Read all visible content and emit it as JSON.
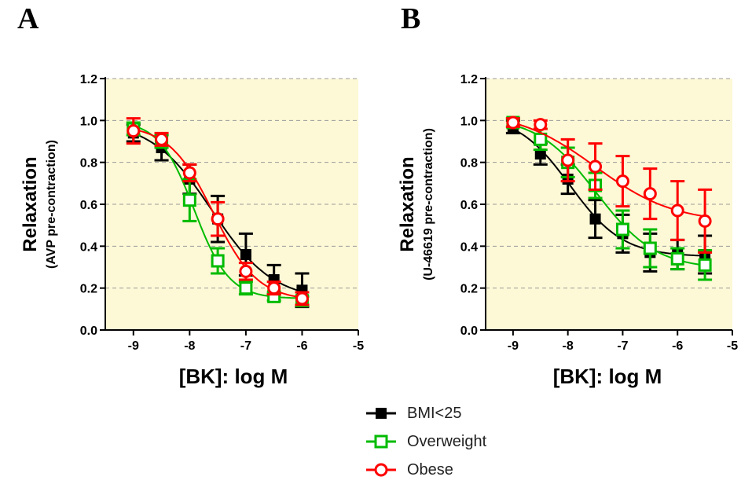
{
  "panels": {
    "a": {
      "letter": "A"
    },
    "b": {
      "letter": "B"
    }
  },
  "legend": [
    {
      "label": "BMI<25",
      "color": "#000000",
      "marker": "filled-square"
    },
    {
      "label": "Overweight",
      "color": "#00bb00",
      "marker": "open-square"
    },
    {
      "label": "Obese",
      "color": "#ff0000",
      "marker": "open-circle"
    }
  ],
  "chart_data": [
    {
      "type": "scatter",
      "panel": "A",
      "title": "",
      "xlabel": "[BK]: log M",
      "ylabel": "Relaxation",
      "ylabel_sub": "(AVP pre-contraction)",
      "xlim": [
        -9.5,
        -5
      ],
      "ylim": [
        0,
        1.2
      ],
      "xticks": [
        "-9",
        "-8",
        "-7",
        "-6",
        "-5"
      ],
      "yticks": [
        "0.0",
        "0.2",
        "0.4",
        "0.6",
        "0.8",
        "1.0",
        "1.2"
      ],
      "grid": "horizontal-dashed",
      "background": "#fdf8d6",
      "series": [
        {
          "name": "BMI<25",
          "color": "#000000",
          "marker": "filled-square",
          "fit": true,
          "x": [
            -9,
            -8.5,
            -8,
            -7.5,
            -7,
            -6.5,
            -6
          ],
          "y": [
            0.94,
            0.87,
            0.72,
            0.53,
            0.36,
            0.24,
            0.19
          ],
          "err": [
            0.04,
            0.06,
            0.07,
            0.11,
            0.1,
            0.07,
            0.08
          ]
        },
        {
          "name": "Overweight",
          "color": "#00bb00",
          "marker": "open-square",
          "fit": true,
          "x": [
            -9,
            -8.5,
            -8,
            -7.5,
            -7,
            -6.5,
            -6
          ],
          "y": [
            0.96,
            0.9,
            0.62,
            0.33,
            0.2,
            0.16,
            0.14
          ],
          "err": [
            0.03,
            0.03,
            0.1,
            0.06,
            0.03,
            0.02,
            0.02
          ]
        },
        {
          "name": "Obese",
          "color": "#ff0000",
          "marker": "open-circle",
          "fit": true,
          "x": [
            -9,
            -8.5,
            -8,
            -7.5,
            -7,
            -6.5,
            -6
          ],
          "y": [
            0.95,
            0.91,
            0.75,
            0.53,
            0.28,
            0.2,
            0.15
          ],
          "err": [
            0.06,
            0.03,
            0.04,
            0.08,
            0.04,
            0.03,
            0.03
          ]
        }
      ]
    },
    {
      "type": "scatter",
      "panel": "B",
      "title": "",
      "xlabel": "[BK]: log M",
      "ylabel": "Relaxation",
      "ylabel_sub": "(U-46619 pre-contraction)",
      "xlim": [
        -9.5,
        -5
      ],
      "ylim": [
        0,
        1.2
      ],
      "xticks": [
        "-9",
        "-8",
        "-7",
        "-6",
        "-5"
      ],
      "yticks": [
        "0.0",
        "0.2",
        "0.4",
        "0.6",
        "0.8",
        "1.0",
        "1.2"
      ],
      "grid": "horizontal-dashed",
      "background": "#fdf8d6",
      "series": [
        {
          "name": "BMI<25",
          "color": "#000000",
          "marker": "filled-square",
          "fit": true,
          "x": [
            -9,
            -8.5,
            -8,
            -7.5,
            -7,
            -6.5,
            -6,
            -5.5
          ],
          "y": [
            0.97,
            0.84,
            0.72,
            0.53,
            0.46,
            0.37,
            0.36,
            0.36
          ],
          "err": [
            0.03,
            0.05,
            0.07,
            0.09,
            0.09,
            0.09,
            0.07,
            0.09
          ]
        },
        {
          "name": "Overweight",
          "color": "#00bb00",
          "marker": "open-square",
          "fit": true,
          "x": [
            -9,
            -8.5,
            -8,
            -7.5,
            -7,
            -6.5,
            -6,
            -5.5
          ],
          "y": [
            0.99,
            0.91,
            0.8,
            0.69,
            0.48,
            0.39,
            0.34,
            0.31
          ],
          "err": [
            0.02,
            0.05,
            0.07,
            0.06,
            0.09,
            0.09,
            0.05,
            0.07
          ]
        },
        {
          "name": "Obese",
          "color": "#ff0000",
          "marker": "open-circle",
          "fit": true,
          "x": [
            -9,
            -8.5,
            -8,
            -7.5,
            -7,
            -6.5,
            -6,
            -5.5
          ],
          "y": [
            0.99,
            0.98,
            0.81,
            0.78,
            0.71,
            0.65,
            0.57,
            0.52
          ],
          "err": [
            0.02,
            0.02,
            0.1,
            0.11,
            0.12,
            0.12,
            0.14,
            0.15
          ]
        }
      ]
    }
  ]
}
